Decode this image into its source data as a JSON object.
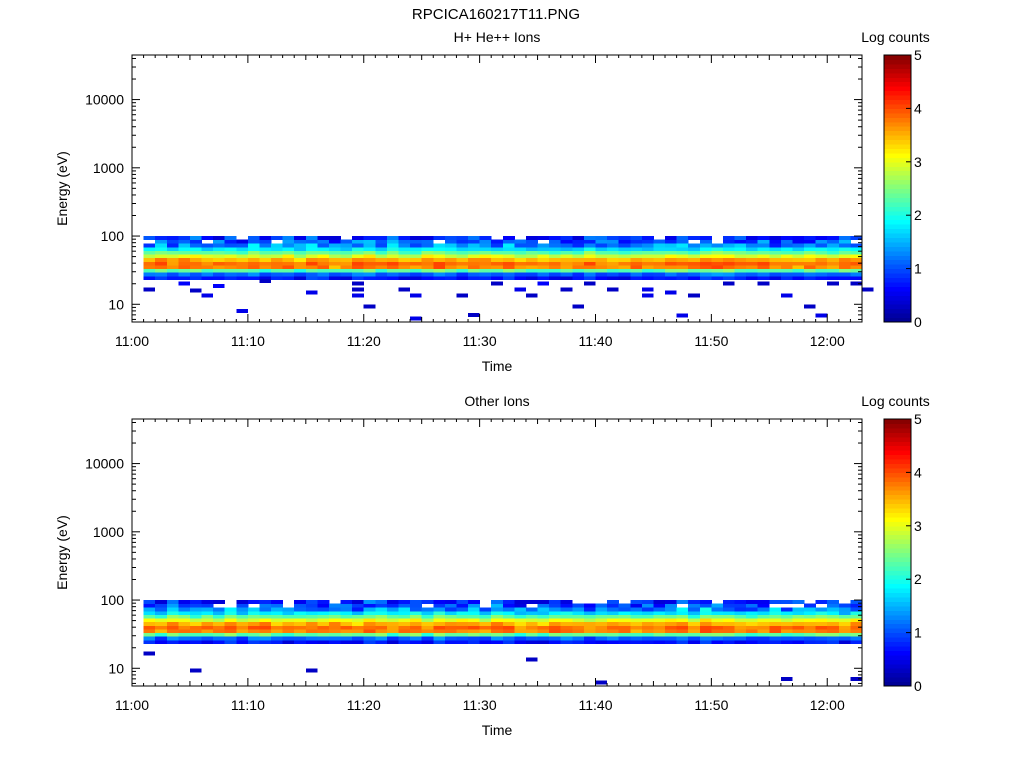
{
  "figure": {
    "title": "RPCICA160217T11.PNG"
  },
  "colormap": [
    "#00008f",
    "#0000ff",
    "#0080ff",
    "#00ffff",
    "#80ff80",
    "#ffff00",
    "#ff8000",
    "#ff0000",
    "#800000"
  ],
  "chart_data": [
    {
      "type": "heatmap",
      "title": "H+ He++ Ions",
      "xlabel": "Time",
      "ylabel": "Energy (eV)",
      "colorbar": {
        "label": "Log counts",
        "range": [
          0,
          5
        ],
        "ticks": [
          "0",
          "1",
          "2",
          "3",
          "4",
          "5"
        ]
      },
      "xlim": [
        "11:00",
        "12:03"
      ],
      "xticks": [
        "11:00",
        "11:10",
        "11:20",
        "11:30",
        "11:40",
        "11:50",
        "12:00"
      ],
      "yscale": "log",
      "ylim": [
        5.5,
        45000
      ],
      "yticks": [
        "10",
        "100",
        "1000",
        "10000"
      ],
      "band": {
        "emin": 23,
        "emax": 100,
        "peak_energy_eV": 37,
        "peak_log_counts": 3.9,
        "tmin": "11:01",
        "tmax": "12:03"
      },
      "sparse_low_energy_counts": [
        {
          "time": "11:01",
          "energy": 16.5,
          "log_counts": 0.3
        },
        {
          "time": "11:04",
          "energy": 20,
          "log_counts": 0.6
        },
        {
          "time": "11:05",
          "energy": 16,
          "log_counts": 0.3
        },
        {
          "time": "11:06",
          "energy": 13.5,
          "log_counts": 0.5
        },
        {
          "time": "11:07",
          "energy": 18.5,
          "log_counts": 0.6
        },
        {
          "time": "11:09",
          "energy": 8,
          "log_counts": 0.5
        },
        {
          "time": "11:11",
          "energy": 22,
          "log_counts": 0.3
        },
        {
          "time": "11:15",
          "energy": 15,
          "log_counts": 0.5
        },
        {
          "time": "11:19",
          "energy": 16.5,
          "log_counts": 0.3
        },
        {
          "time": "11:19",
          "energy": 13.5,
          "log_counts": 0.5
        },
        {
          "time": "11:19",
          "energy": 20,
          "log_counts": 0.3
        },
        {
          "time": "11:20",
          "energy": 9.3,
          "log_counts": 0.3
        },
        {
          "time": "11:23",
          "energy": 16.5,
          "log_counts": 0.3
        },
        {
          "time": "11:24",
          "energy": 13.5,
          "log_counts": 0.5
        },
        {
          "time": "11:24",
          "energy": 6.2,
          "log_counts": 0.5
        },
        {
          "time": "11:28",
          "energy": 13.5,
          "log_counts": 0.3
        },
        {
          "time": "11:29",
          "energy": 7,
          "log_counts": 0.3
        },
        {
          "time": "11:31",
          "energy": 20,
          "log_counts": 0.3
        },
        {
          "time": "11:33",
          "energy": 16.5,
          "log_counts": 0.5
        },
        {
          "time": "11:34",
          "energy": 13.5,
          "log_counts": 0.3
        },
        {
          "time": "11:35",
          "energy": 20,
          "log_counts": 0.6
        },
        {
          "time": "11:37",
          "energy": 16.5,
          "log_counts": 0.3
        },
        {
          "time": "11:38",
          "energy": 9.3,
          "log_counts": 0.3
        },
        {
          "time": "11:39",
          "energy": 20,
          "log_counts": 0.3
        },
        {
          "time": "11:41",
          "energy": 16.5,
          "log_counts": 0.3
        },
        {
          "time": "11:44",
          "energy": 13.5,
          "log_counts": 0.5
        },
        {
          "time": "11:44",
          "energy": 16.5,
          "log_counts": 0.5
        },
        {
          "time": "11:46",
          "energy": 15,
          "log_counts": 0.5
        },
        {
          "time": "11:47",
          "energy": 6.8,
          "log_counts": 0.5
        },
        {
          "time": "11:48",
          "energy": 13.5,
          "log_counts": 0.3
        },
        {
          "time": "11:51",
          "energy": 20,
          "log_counts": 0.3
        },
        {
          "time": "11:54",
          "energy": 20,
          "log_counts": 0.3
        },
        {
          "time": "11:56",
          "energy": 13.5,
          "log_counts": 0.5
        },
        {
          "time": "11:58",
          "energy": 9.3,
          "log_counts": 0.3
        },
        {
          "time": "11:59",
          "energy": 6.8,
          "log_counts": 0.5
        },
        {
          "time": "12:00",
          "energy": 20,
          "log_counts": 0.3
        },
        {
          "time": "12:02",
          "energy": 20,
          "log_counts": 0.3
        },
        {
          "time": "12:03",
          "energy": 16.5,
          "log_counts": 0.3
        }
      ]
    },
    {
      "type": "heatmap",
      "title": "Other Ions",
      "xlabel": "Time",
      "ylabel": "Energy (eV)",
      "colorbar": {
        "label": "Log counts",
        "range": [
          0,
          5
        ],
        "ticks": [
          "0",
          "1",
          "2",
          "3",
          "4",
          "5"
        ]
      },
      "xlim": [
        "11:00",
        "12:03"
      ],
      "xticks": [
        "11:00",
        "11:10",
        "11:20",
        "11:30",
        "11:40",
        "11:50",
        "12:00"
      ],
      "yscale": "log",
      "ylim": [
        5.5,
        45000
      ],
      "yticks": [
        "10",
        "100",
        "1000",
        "10000"
      ],
      "band": {
        "emin": 23,
        "emax": 100,
        "peak_energy_eV": 37,
        "peak_log_counts": 3.9,
        "tmin": "11:01",
        "tmax": "12:03"
      },
      "sparse_low_energy_counts": [
        {
          "time": "11:01",
          "energy": 16.5,
          "log_counts": 0.3
        },
        {
          "time": "11:05",
          "energy": 9.3,
          "log_counts": 0.3
        },
        {
          "time": "11:15",
          "energy": 9.3,
          "log_counts": 0.3
        },
        {
          "time": "11:34",
          "energy": 13.5,
          "log_counts": 0.3
        },
        {
          "time": "11:40",
          "energy": 6.2,
          "log_counts": 0.3
        },
        {
          "time": "11:56",
          "energy": 7,
          "log_counts": 0.3
        },
        {
          "time": "12:02",
          "energy": 7,
          "log_counts": 0.3
        }
      ]
    }
  ]
}
